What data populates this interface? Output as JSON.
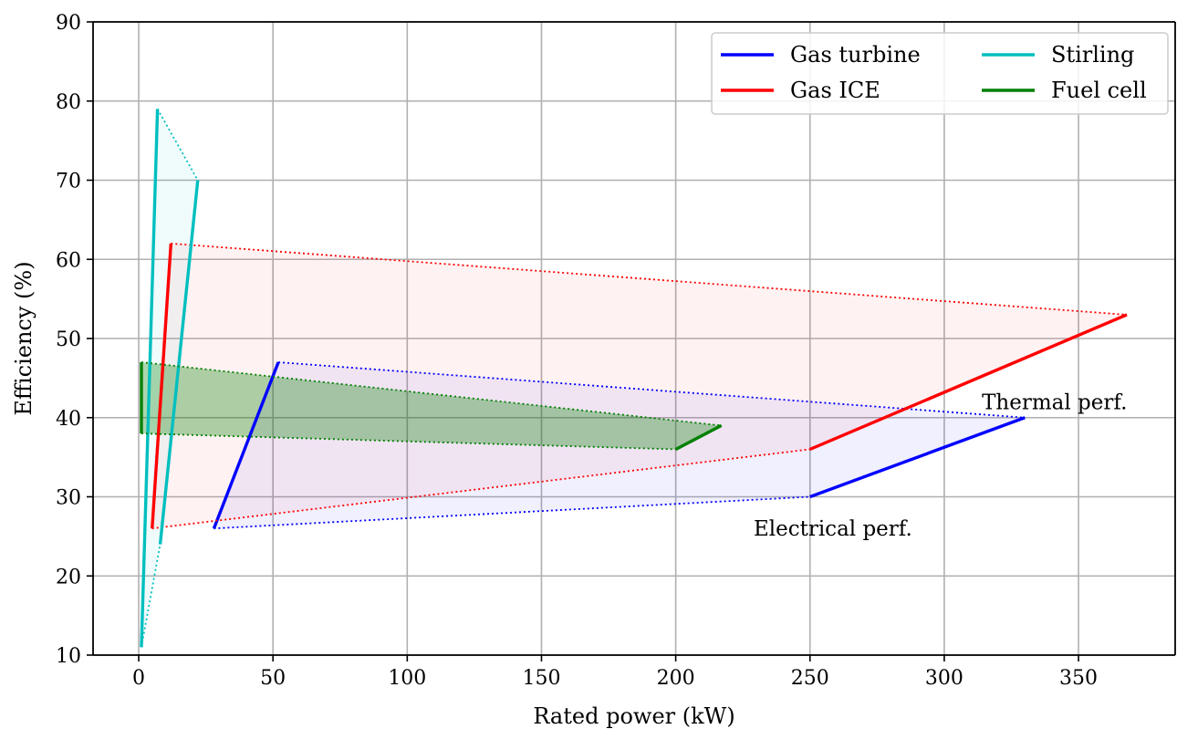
{
  "chart_data": {
    "type": "line",
    "title": "",
    "xlabel": "Rated power (kW)",
    "ylabel": "Efficiency (%)",
    "xlim": [
      -17,
      386
    ],
    "ylim": [
      10,
      90
    ],
    "xticks": [
      0,
      50,
      100,
      150,
      200,
      250,
      300,
      350
    ],
    "yticks": [
      10,
      20,
      30,
      40,
      50,
      60,
      70,
      80,
      90
    ],
    "grid": true,
    "legend": {
      "placement": "top-right",
      "columns": 2
    },
    "series": [
      {
        "name": "Gas turbine",
        "color": "#0000ff",
        "electrical": [
          [
            28,
            26
          ],
          [
            250,
            30
          ]
        ],
        "thermal": [
          [
            52,
            47
          ],
          [
            330,
            40
          ]
        ]
      },
      {
        "name": "Gas ICE",
        "color": "#ff0000",
        "electrical": [
          [
            5,
            26
          ],
          [
            250,
            36
          ]
        ],
        "thermal": [
          [
            12,
            62
          ],
          [
            368,
            53
          ]
        ]
      },
      {
        "name": "Stirling",
        "color": "#00bfbf",
        "electrical": [
          [
            1,
            11
          ],
          [
            8,
            24
          ]
        ],
        "thermal": [
          [
            7,
            79
          ],
          [
            22,
            70
          ]
        ]
      },
      {
        "name": "Fuel cell",
        "color": "#008000",
        "electrical": [
          [
            1,
            38
          ],
          [
            200,
            36
          ]
        ],
        "thermal": [
          [
            1,
            47
          ],
          [
            217,
            39
          ]
        ]
      }
    ],
    "annotations": [
      {
        "text": "Thermal perf.",
        "x": 314,
        "y": 42
      },
      {
        "text": "Electrical perf.",
        "x": 229,
        "y": 26
      }
    ]
  }
}
